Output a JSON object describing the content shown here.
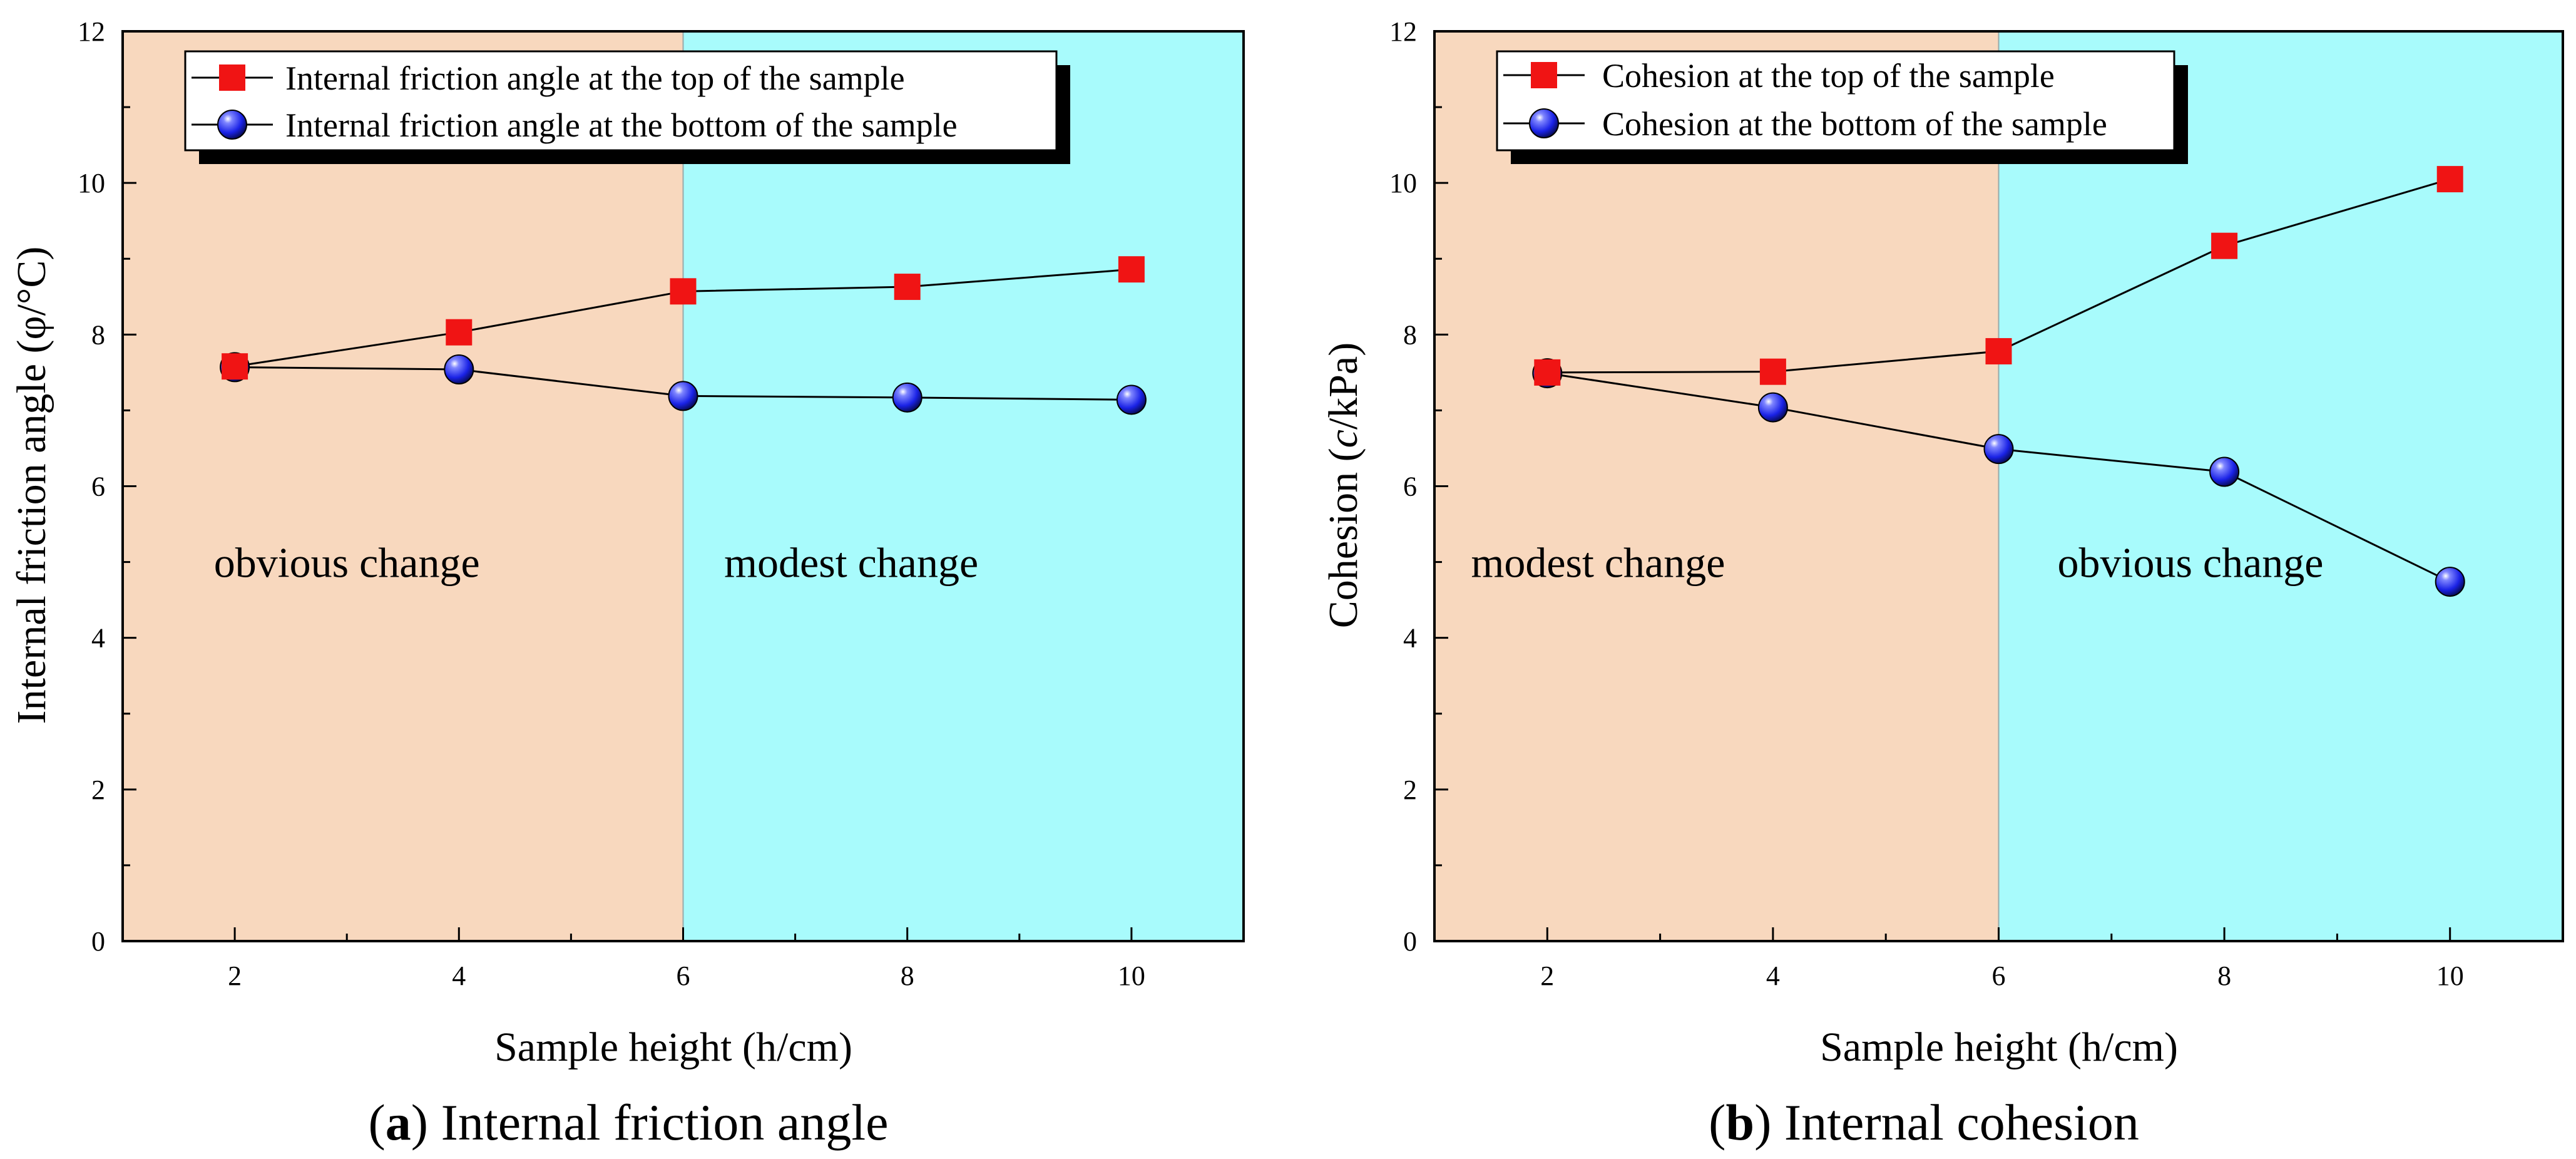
{
  "colors": {
    "region_left": "#F8D8BE",
    "region_right": "#A8FBFC",
    "top_marker": "#F01414",
    "bottom_marker": "#1A22E6",
    "line": "#000000"
  },
  "chart_data": [
    {
      "type": "line",
      "caption_letter": "a",
      "caption_open": "(",
      "caption_rest": ") Internal friction angle",
      "xlabel": "Sample height (h/cm)",
      "ylabel": "Internal friction angle (φ/°C)",
      "xlim": [
        1,
        11
      ],
      "ylim": [
        0,
        12
      ],
      "xticks": [
        2,
        4,
        6,
        8,
        10
      ],
      "yticks": [
        0,
        2,
        4,
        6,
        8,
        10,
        12
      ],
      "regions": [
        {
          "x0": 1,
          "x1": 6,
          "color_key": "region_left",
          "label": "obvious change",
          "label_x": 3.0,
          "label_y": 5.0
        },
        {
          "x0": 6,
          "x1": 11,
          "color_key": "region_right",
          "label": "modest change",
          "label_x": 7.5,
          "label_y": 5.0
        }
      ],
      "x": [
        2,
        4,
        6,
        8,
        10
      ],
      "series": [
        {
          "name": "Internal friction angle at the top of the sample",
          "marker": "square",
          "values": [
            7.58,
            8.03,
            8.57,
            8.63,
            8.86
          ]
        },
        {
          "name": "Internal friction angle at the bottom of the sample",
          "marker": "sphere",
          "values": [
            7.57,
            7.54,
            7.19,
            7.17,
            7.14
          ]
        }
      ]
    },
    {
      "type": "line",
      "caption_letter": "b",
      "caption_open": "(",
      "caption_rest": ") Internal cohesion",
      "xlabel": "Sample height (h/cm)",
      "ylabel_prefix": "Cohesion (",
      "ylabel_italic": "c",
      "ylabel_suffix": "/kPa)",
      "xlim": [
        1,
        11
      ],
      "ylim": [
        0,
        12
      ],
      "xticks": [
        2,
        4,
        6,
        8,
        10
      ],
      "yticks": [
        0,
        2,
        4,
        6,
        8,
        10,
        12
      ],
      "regions": [
        {
          "x0": 1,
          "x1": 6,
          "color_key": "region_left",
          "label": "modest change",
          "label_x": 2.45,
          "label_y": 5.0
        },
        {
          "x0": 6,
          "x1": 11,
          "color_key": "region_right",
          "label": "obvious change",
          "label_x": 7.7,
          "label_y": 5.0
        }
      ],
      "x": [
        2,
        4,
        6,
        8,
        10
      ],
      "series": [
        {
          "name": "Cohesion at the top of the sample",
          "marker": "square",
          "values": [
            7.5,
            7.51,
            7.78,
            9.17,
            10.05
          ]
        },
        {
          "name": "Cohesion at the bottom of the sample",
          "marker": "sphere",
          "values": [
            7.49,
            7.04,
            6.49,
            6.19,
            4.74
          ]
        }
      ]
    }
  ]
}
